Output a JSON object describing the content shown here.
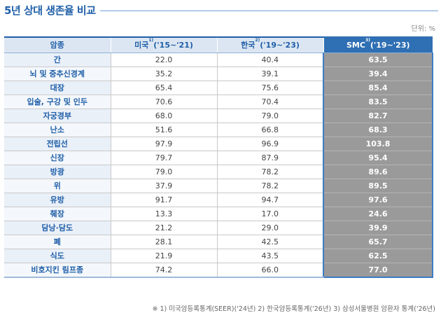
{
  "title": "5년 상대 생존율 비교",
  "unit": "단위: %",
  "header": {
    "col1": "암종",
    "col2_name": "미국",
    "col2_sup": "1)",
    "col2_period": "('15~'21)",
    "col3_name": "한국",
    "col3_sup": "2)",
    "col3_period": "('19~'23)",
    "col4_name": "SMC",
    "col4_sup": "3)",
    "col4_period": "('19~'23)"
  },
  "rows": [
    {
      "cancer": "간",
      "us": "22.0",
      "kr": "40.4",
      "smc": "63.5"
    },
    {
      "cancer": "뇌 및 중추신경계",
      "us": "35.2",
      "kr": "39.1",
      "smc": "39.4"
    },
    {
      "cancer": "대장",
      "us": "65.4",
      "kr": "75.6",
      "smc": "85.4"
    },
    {
      "cancer": "입술, 구강 및 인두",
      "us": "70.6",
      "kr": "70.4",
      "smc": "83.5"
    },
    {
      "cancer": "자궁경부",
      "us": "68.0",
      "kr": "79.0",
      "smc": "82.7"
    },
    {
      "cancer": "난소",
      "us": "51.6",
      "kr": "66.8",
      "smc": "68.3"
    },
    {
      "cancer": "전립선",
      "us": "97.9",
      "kr": "96.9",
      "smc": "103.8"
    },
    {
      "cancer": "신장",
      "us": "79.7",
      "kr": "87.9",
      "smc": "95.4"
    },
    {
      "cancer": "방광",
      "us": "79.0",
      "kr": "78.2",
      "smc": "89.6"
    },
    {
      "cancer": "위",
      "us": "37.9",
      "kr": "78.2",
      "smc": "89.5"
    },
    {
      "cancer": "유방",
      "us": "91.7",
      "kr": "94.7",
      "smc": "97.6"
    },
    {
      "cancer": "췌장",
      "us": "13.3",
      "kr": "17.0",
      "smc": "24.6"
    },
    {
      "cancer": "담낭·담도",
      "us": "21.2",
      "kr": "29.0",
      "smc": "39.9"
    },
    {
      "cancer": "폐",
      "us": "28.1",
      "kr": "42.5",
      "smc": "65.7"
    },
    {
      "cancer": "식도",
      "us": "21.9",
      "kr": "43.5",
      "smc": "62.5"
    },
    {
      "cancer": "비호지킨 림프종",
      "us": "74.2",
      "kr": "66.0",
      "smc": "77.0"
    }
  ],
  "footnote": "※ 1) 미국암등록통계(SEER)('24년) 2) 한국암등록통계('26년) 3) 삼성서울병원 암환자 통계('26년)",
  "colors": {
    "accent": "#1f5fa8",
    "smc_header": "#2f6fb3",
    "smc_cell": "#9a9a9a"
  }
}
